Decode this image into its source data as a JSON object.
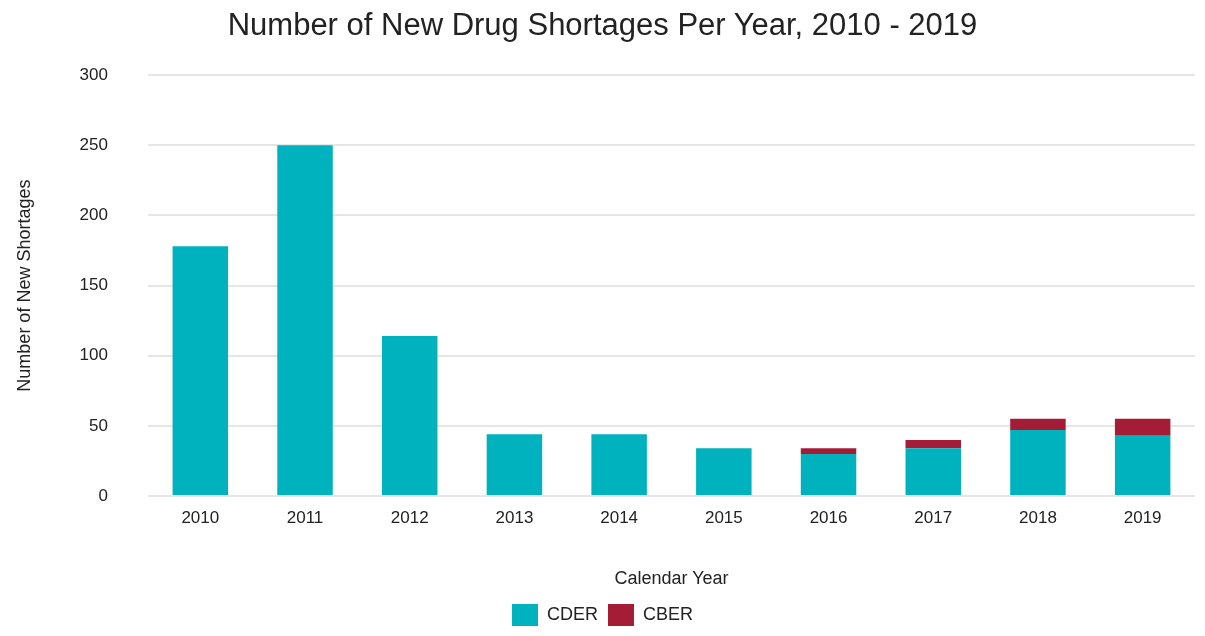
{
  "chart_data": {
    "type": "bar",
    "title": "Number of New Drug Shortages Per Year, 2010 - 2019",
    "xlabel": "Calendar Year",
    "ylabel": "Number of New Shortages",
    "categories": [
      "2010",
      "2011",
      "2012",
      "2013",
      "2014",
      "2015",
      "2016",
      "2017",
      "2018",
      "2019"
    ],
    "series": [
      {
        "name": "CDER",
        "color": "#00b2be",
        "values": [
          178,
          250,
          114,
          44,
          44,
          34,
          30,
          34,
          47,
          43
        ]
      },
      {
        "name": "CBER",
        "color": "#a51c36",
        "values": [
          0,
          0,
          0,
          0,
          0,
          0,
          4,
          6,
          8,
          12
        ]
      }
    ],
    "stacked": true,
    "ylim": [
      0,
      300
    ],
    "yticks": [
      0,
      50,
      100,
      150,
      200,
      250,
      300
    ],
    "grid": "y",
    "legend": "bottom"
  }
}
